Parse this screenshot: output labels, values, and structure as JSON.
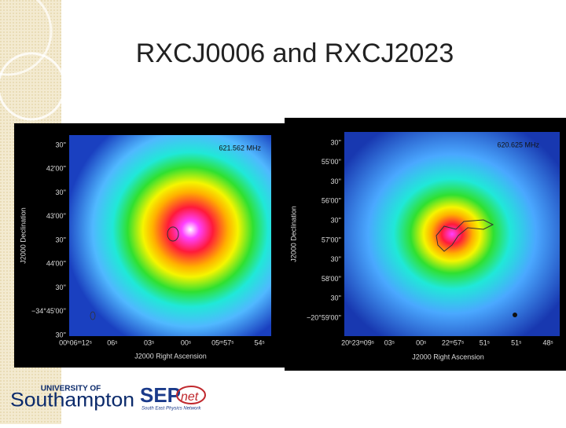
{
  "title": "RXCJ0006 and RXCJ2023",
  "panels": [
    {
      "frequency": "621.562 MHz",
      "yticks": [
        "30''",
        "42'00''",
        "30''",
        "43'00''",
        "30''",
        "44'00''",
        "30''",
        "−34°45'00''",
        "30''"
      ],
      "xticks": [
        "00ʰ06ᵐ12ˢ",
        "06ˢ",
        "03ˢ",
        "00ˢ",
        "05ᵐ57ˢ",
        "54ˢ"
      ],
      "ylabel": "J2000 Declination",
      "xlabel": "J2000 Right Ascension"
    },
    {
      "frequency": "620.625 MHz",
      "yticks": [
        "30''",
        "55'00''",
        "30''",
        "56'00''",
        "30''",
        "57'00''",
        "30''",
        "58'00''",
        "30''",
        "−20°59'00''"
      ],
      "xticks": [
        "20ʰ23ᵐ09ˢ",
        "03ˢ",
        "00ˢ",
        "22ᵐ57ˢ",
        "51ˢ",
        "51ˢ",
        "48ˢ"
      ],
      "ylabel": "J2000 Declination",
      "xlabel": "J2000 Right Ascension"
    }
  ],
  "logos": {
    "university_of": "UNIVERSITY OF",
    "southampton": "Southampton",
    "sep": "SEP",
    "net": "net",
    "network": "South East Physics Network"
  }
}
